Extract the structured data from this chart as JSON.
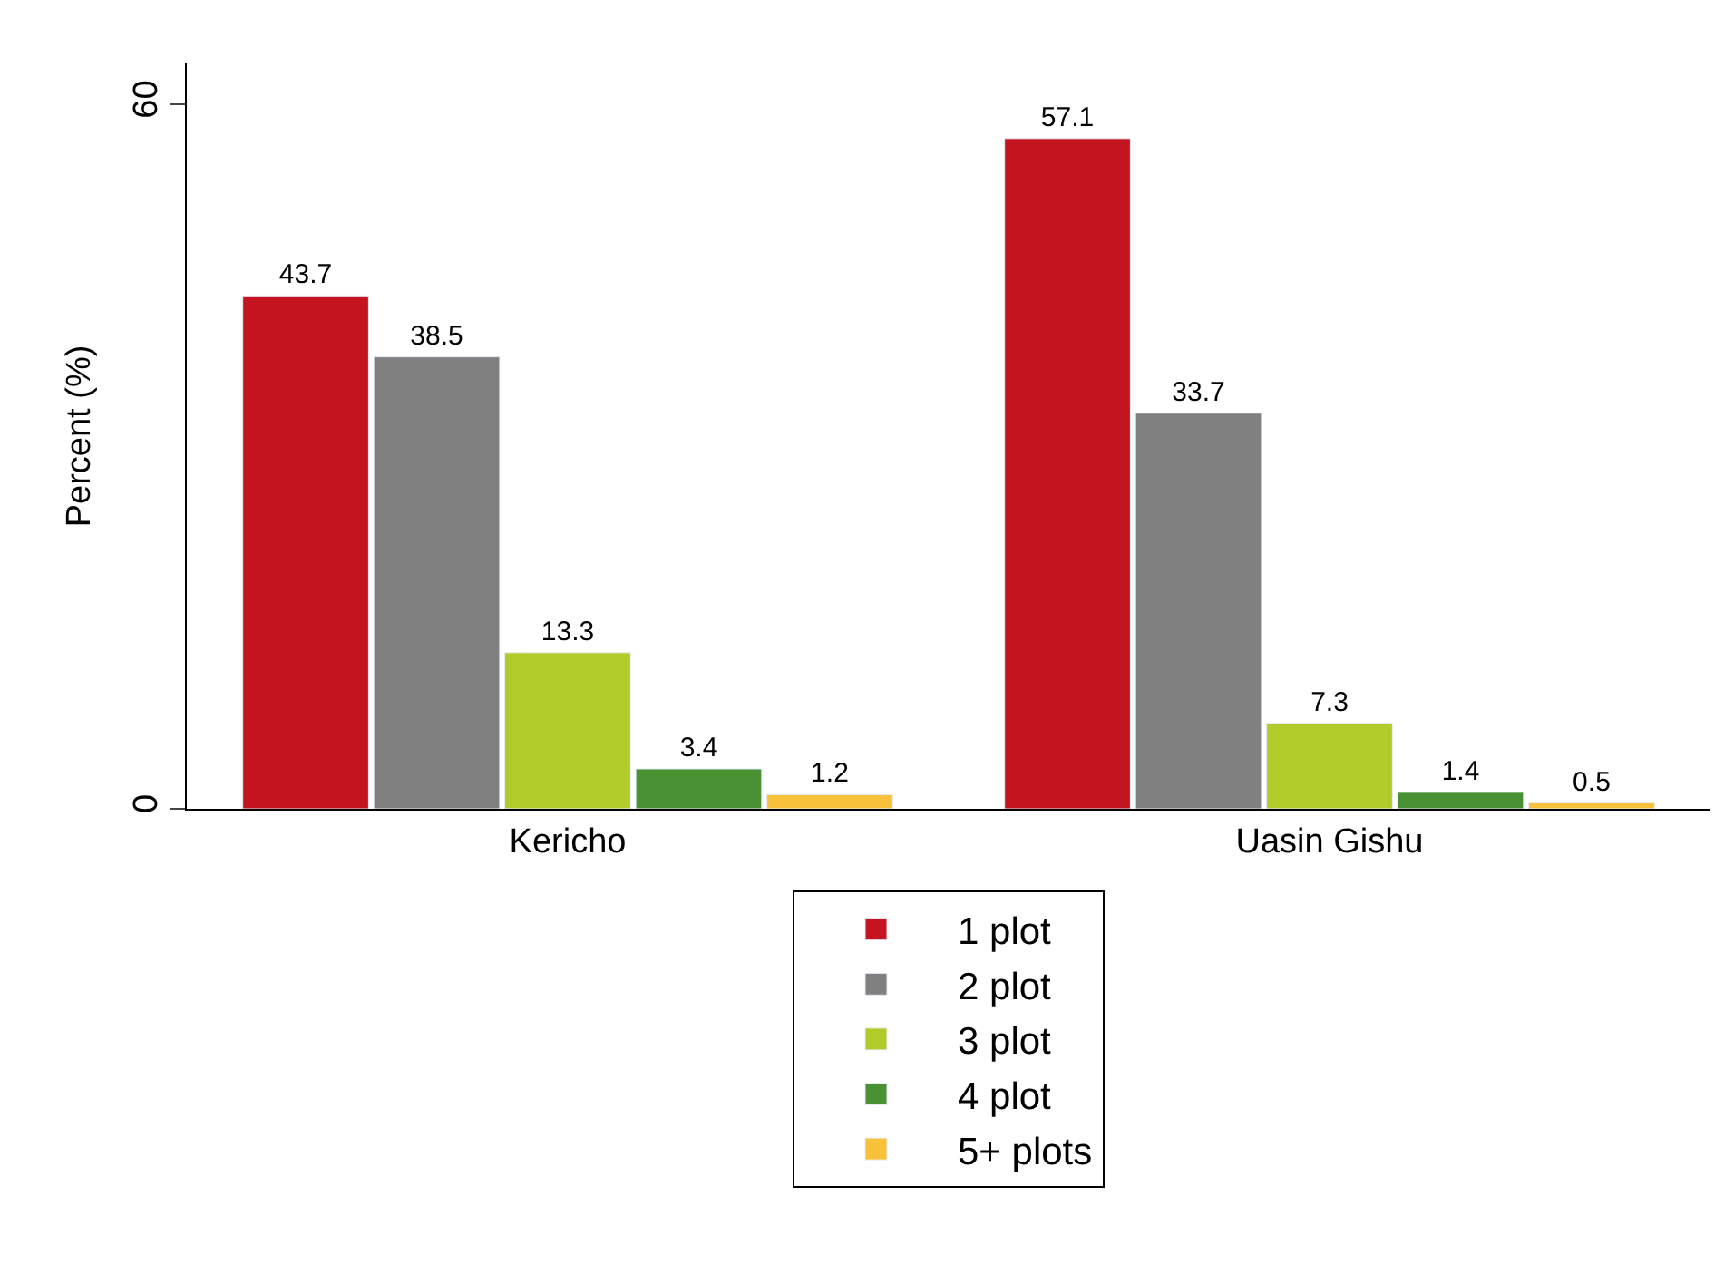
{
  "chart_data": {
    "type": "bar",
    "ylabel": "Percent (%)",
    "categories": [
      "Kericho",
      "Uasin Gishu"
    ],
    "series": [
      {
        "name": "1 plot",
        "color": "#c41420",
        "values": [
          43.7,
          57.1
        ]
      },
      {
        "name": "2 plot",
        "color": "#808080",
        "values": [
          38.5,
          33.7
        ]
      },
      {
        "name": "3 plot",
        "color": "#b0cb2a",
        "values": [
          13.3,
          7.3
        ]
      },
      {
        "name": "4 plot",
        "color": "#4a9133",
        "values": [
          3.4,
          1.4
        ]
      },
      {
        "name": "5+ plots",
        "color": "#f7c13a",
        "values": [
          1.2,
          0.5
        ]
      }
    ],
    "ylim": [
      0,
      63.5
    ],
    "yticks": [
      0,
      60
    ],
    "data_labels": true,
    "legend": "bottom"
  }
}
